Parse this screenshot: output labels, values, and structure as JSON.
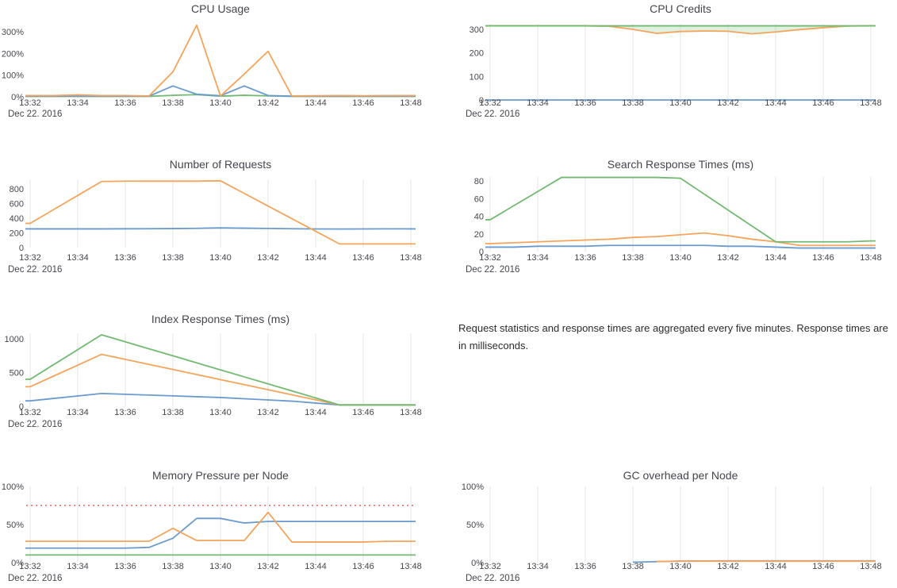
{
  "palette": {
    "blue": "#6a9bce",
    "orange": "#f5a45c",
    "green": "#72ba71",
    "red": "#ee8888",
    "grid": "#e6e6e6",
    "text": "#45454d",
    "fill_green": "rgba(114,186,113,0.22)"
  },
  "note": {
    "text": "Request statistics and response times are aggregated every five minutes. Response times are in milliseconds."
  },
  "x_axis": {
    "tick_labels": [
      "13:32",
      "13:34",
      "13:36",
      "13:38",
      "13:40",
      "13:42",
      "13:44",
      "13:46",
      "13:48"
    ],
    "date_label": "Dec 22. 2016"
  },
  "chart_data": [
    {
      "id": "cpu_usage",
      "type": "line",
      "title": "CPU Usage",
      "x": [
        "13:32",
        "13:33",
        "13:34",
        "13:35",
        "13:36",
        "13:37",
        "13:38",
        "13:39",
        "13:40",
        "13:41",
        "13:42",
        "13:43",
        "13:44",
        "13:45",
        "13:46",
        "13:47",
        "13:48"
      ],
      "x_tick_labels": [
        "13:32",
        "13:34",
        "13:36",
        "13:38",
        "13:40",
        "13:42",
        "13:44",
        "13:46",
        "13:48"
      ],
      "date_label": "Dec 22. 2016",
      "ylabel": "percent",
      "ylim": [
        0,
        350
      ],
      "y_tick_values": [
        0,
        100,
        200,
        300
      ],
      "y_tick_labels": [
        "0%",
        "100%",
        "200%",
        "300%"
      ],
      "gridlines": false,
      "legend": "none",
      "series": [
        {
          "name": "green",
          "color": "green",
          "values": [
            2,
            2,
            2,
            2,
            2,
            2,
            7,
            10,
            3,
            7,
            4,
            2,
            2,
            2,
            2,
            2,
            2
          ]
        },
        {
          "name": "blue",
          "color": "blue",
          "values": [
            3,
            3,
            3,
            3,
            3,
            3,
            50,
            12,
            5,
            50,
            6,
            3,
            3,
            3,
            3,
            3,
            3
          ]
        },
        {
          "name": "orange",
          "color": "orange",
          "values": [
            6,
            6,
            9,
            6,
            6,
            4,
            115,
            330,
            4,
            105,
            210,
            4,
            5,
            6,
            5,
            6,
            6
          ]
        }
      ]
    },
    {
      "id": "cpu_credits",
      "type": "line",
      "title": "CPU Credits",
      "x": [
        "13:32",
        "13:33",
        "13:34",
        "13:35",
        "13:36",
        "13:37",
        "13:38",
        "13:39",
        "13:40",
        "13:41",
        "13:42",
        "13:43",
        "13:44",
        "13:45",
        "13:46",
        "13:47",
        "13:48"
      ],
      "x_tick_labels": [
        "13:32",
        "13:34",
        "13:36",
        "13:38",
        "13:40",
        "13:42",
        "13:44",
        "13:46",
        "13:48"
      ],
      "date_label": "Dec 22. 2016",
      "ylabel": "credits",
      "ylim": [
        0,
        330
      ],
      "y_tick_values": [
        0,
        100,
        200,
        300
      ],
      "y_tick_labels": [
        "0",
        "100",
        "200",
        "300"
      ],
      "gridlines": true,
      "legend": "none",
      "fill_between": {
        "upper": "green",
        "lower": "orange"
      },
      "series": [
        {
          "name": "blue",
          "color": "blue",
          "values": [
            0,
            0,
            0,
            0,
            0,
            0,
            0,
            0,
            0,
            0,
            0,
            0,
            0,
            0,
            0,
            0,
            0
          ]
        },
        {
          "name": "orange",
          "color": "orange",
          "values": [
            315,
            315,
            315,
            315,
            315,
            313,
            300,
            283,
            291,
            293,
            292,
            281,
            289,
            299,
            307,
            314,
            315
          ]
        },
        {
          "name": "green",
          "color": "green",
          "values": [
            315,
            315,
            315,
            315,
            315,
            315,
            315,
            315,
            315,
            315,
            315,
            315,
            315,
            315,
            315,
            315,
            315
          ]
        }
      ]
    },
    {
      "id": "requests",
      "type": "line",
      "title": "Number of Requests",
      "x": [
        "13:32",
        "13:33",
        "13:34",
        "13:35",
        "13:36",
        "13:37",
        "13:38",
        "13:39",
        "13:40",
        "13:41",
        "13:42",
        "13:43",
        "13:44",
        "13:45",
        "13:46",
        "13:47",
        "13:48"
      ],
      "x_tick_labels": [
        "13:32",
        "13:34",
        "13:36",
        "13:38",
        "13:40",
        "13:42",
        "13:44",
        "13:46",
        "13:48"
      ],
      "date_label": "Dec 22. 2016",
      "ylabel": "requests",
      "ylim": [
        0,
        930
      ],
      "y_tick_values": [
        0,
        200,
        400,
        600,
        800
      ],
      "y_tick_labels": [
        "0",
        "200",
        "400",
        "600",
        "800"
      ],
      "gridlines": true,
      "legend": "none",
      "series": [
        {
          "name": "blue",
          "color": "blue",
          "values": [
            255,
            255,
            255,
            255,
            256,
            257,
            259,
            262,
            268,
            264,
            261,
            257,
            254,
            253,
            254,
            255,
            255
          ]
        },
        {
          "name": "orange",
          "color": "orange",
          "values": [
            330,
            520,
            710,
            900,
            905,
            905,
            905,
            905,
            910,
            738,
            566,
            394,
            222,
            50,
            50,
            50,
            50
          ]
        }
      ]
    },
    {
      "id": "search",
      "type": "line",
      "title": "Search Response Times (ms)",
      "x": [
        "13:32",
        "13:33",
        "13:34",
        "13:35",
        "13:36",
        "13:37",
        "13:38",
        "13:39",
        "13:40",
        "13:41",
        "13:42",
        "13:43",
        "13:44",
        "13:45",
        "13:46",
        "13:47",
        "13:48"
      ],
      "x_tick_labels": [
        "13:32",
        "13:34",
        "13:36",
        "13:38",
        "13:40",
        "13:42",
        "13:44",
        "13:46",
        "13:48"
      ],
      "date_label": "Dec 22. 2016",
      "ylabel": "ms",
      "ylim": [
        0,
        90
      ],
      "y_tick_values": [
        0,
        20,
        40,
        60,
        80
      ],
      "y_tick_labels": [
        "0",
        "20",
        "40",
        "60",
        "80"
      ],
      "gridlines": true,
      "legend": "none",
      "series": [
        {
          "name": "blue",
          "color": "blue",
          "values": [
            5,
            5,
            6,
            6,
            6,
            7,
            7,
            7,
            7,
            7,
            6,
            6,
            5,
            4,
            4,
            4,
            4
          ]
        },
        {
          "name": "orange",
          "color": "orange",
          "values": [
            9,
            10,
            11,
            12,
            13,
            14,
            16,
            17,
            19,
            21,
            18,
            14,
            11,
            7,
            7,
            7,
            7
          ]
        },
        {
          "name": "green",
          "color": "green",
          "values": [
            36,
            52,
            68,
            84,
            84,
            84,
            84,
            84,
            83,
            65,
            47,
            29,
            11,
            11,
            11,
            11,
            12
          ]
        }
      ]
    },
    {
      "id": "index",
      "type": "line",
      "title": "Index Response Times (ms)",
      "x": [
        "13:32",
        "13:33",
        "13:34",
        "13:35",
        "13:36",
        "13:37",
        "13:38",
        "13:39",
        "13:40",
        "13:41",
        "13:42",
        "13:43",
        "13:44",
        "13:45",
        "13:46",
        "13:47",
        "13:48"
      ],
      "x_tick_labels": [
        "13:32",
        "13:34",
        "13:36",
        "13:38",
        "13:40",
        "13:42",
        "13:44",
        "13:46",
        "13:48"
      ],
      "date_label": "Dec 22. 2016",
      "ylabel": "ms",
      "ylim": [
        0,
        1100
      ],
      "y_tick_values": [
        0,
        500,
        1000
      ],
      "y_tick_labels": [
        "0",
        "500",
        "1000"
      ],
      "gridlines": true,
      "legend": "none",
      "series": [
        {
          "name": "blue",
          "color": "blue",
          "values": [
            80,
            117,
            153,
            190,
            178,
            166,
            154,
            142,
            130,
            112,
            94,
            76,
            48,
            20,
            20,
            20,
            20
          ]
        },
        {
          "name": "orange",
          "color": "orange",
          "values": [
            290,
            450,
            610,
            770,
            695,
            620,
            545,
            470,
            395,
            320,
            245,
            170,
            95,
            20,
            20,
            20,
            20
          ]
        },
        {
          "name": "green",
          "color": "green",
          "values": [
            400,
            620,
            840,
            1060,
            956,
            852,
            748,
            644,
            540,
            436,
            332,
            228,
            124,
            20,
            20,
            20,
            20
          ]
        }
      ]
    },
    {
      "id": "memory",
      "type": "line",
      "title": "Memory Pressure per Node",
      "x": [
        "13:32",
        "13:33",
        "13:34",
        "13:35",
        "13:36",
        "13:37",
        "13:38",
        "13:39",
        "13:40",
        "13:41",
        "13:42",
        "13:43",
        "13:44",
        "13:45",
        "13:46",
        "13:47",
        "13:48"
      ],
      "x_tick_labels": [
        "13:32",
        "13:34",
        "13:36",
        "13:38",
        "13:40",
        "13:42",
        "13:44",
        "13:46",
        "13:48"
      ],
      "date_label": "Dec 22. 2016",
      "ylabel": "percent",
      "ylim": [
        0,
        100
      ],
      "y_tick_values": [
        0,
        50,
        100
      ],
      "y_tick_labels": [
        "0%",
        "50%",
        "100%"
      ],
      "gridlines": true,
      "legend": "none",
      "threshold": {
        "value": 75,
        "style": "dashed",
        "color": "red"
      },
      "series": [
        {
          "name": "green",
          "color": "green",
          "values": [
            10,
            10,
            10,
            10,
            10,
            10,
            10,
            10,
            10,
            10,
            10,
            10,
            10,
            10,
            10,
            10,
            10
          ]
        },
        {
          "name": "blue",
          "color": "blue",
          "values": [
            19,
            19,
            19,
            19,
            19,
            20,
            32,
            58,
            58,
            52,
            54,
            54,
            54,
            54,
            54,
            54,
            54
          ]
        },
        {
          "name": "orange",
          "color": "orange",
          "values": [
            28,
            28,
            28,
            28,
            28,
            28,
            45,
            29,
            29,
            29,
            66,
            27,
            27,
            27,
            27,
            28,
            28
          ]
        }
      ]
    },
    {
      "id": "gc",
      "type": "line",
      "title": "GC overhead per Node",
      "x": [
        "13:32",
        "13:33",
        "13:34",
        "13:35",
        "13:36",
        "13:37",
        "13:38",
        "13:39",
        "13:40",
        "13:41",
        "13:42",
        "13:43",
        "13:44",
        "13:45",
        "13:46",
        "13:47",
        "13:48"
      ],
      "x_tick_labels": [
        "13:32",
        "13:34",
        "13:36",
        "13:38",
        "13:40",
        "13:42",
        "13:44",
        "13:46",
        "13:48"
      ],
      "date_label": "Dec 22. 2016",
      "ylabel": "percent",
      "ylim": [
        0,
        100
      ],
      "y_tick_values": [
        0,
        50,
        100
      ],
      "y_tick_labels": [
        "0%",
        "50%",
        "100%"
      ],
      "gridlines": true,
      "legend": "none",
      "series": [
        {
          "name": "blue",
          "color": "blue",
          "values": [
            null,
            null,
            null,
            null,
            null,
            null,
            0.5,
            1.3,
            2,
            2.2,
            2.3,
            2.3,
            2.3,
            2.3,
            2.3,
            2.3,
            2.3
          ]
        },
        {
          "name": "orange",
          "color": "orange",
          "values": [
            null,
            null,
            null,
            null,
            null,
            null,
            null,
            1.5,
            1.8,
            1.9,
            1.9,
            1.9,
            1.9,
            1.9,
            1.9,
            1.9,
            1.9
          ]
        }
      ]
    }
  ]
}
